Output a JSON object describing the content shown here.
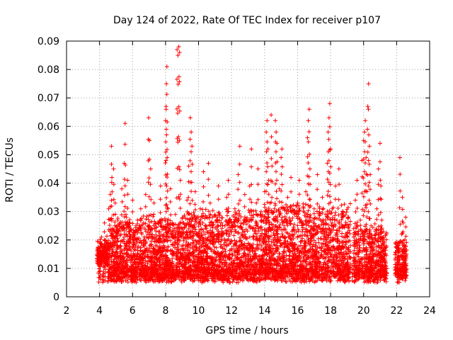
{
  "chart_data": {
    "type": "scatter",
    "title": "Day 124 of 2022, Rate Of TEC Index for receiver p107",
    "xlabel": "GPS time / hours",
    "ylabel": "ROTI / TECUs",
    "xlim": [
      2,
      24
    ],
    "ylim": [
      0,
      0.09
    ],
    "x_ticks": [
      2,
      4,
      6,
      8,
      10,
      12,
      14,
      16,
      18,
      20,
      22,
      24
    ],
    "y_ticks": [
      0,
      0.01,
      0.02,
      0.03,
      0.04,
      0.05,
      0.06,
      0.07,
      0.08,
      0.09
    ],
    "x_tick_labels": [
      "2",
      "4",
      "6",
      "8",
      "10",
      "12",
      "14",
      "16",
      "18",
      "20",
      "22",
      "24"
    ],
    "y_tick_labels": [
      "0",
      "0.01",
      "0.02",
      "0.03",
      "0.04",
      "0.05",
      "0.06",
      "0.07",
      "0.08",
      "0.09"
    ],
    "grid": true,
    "marker": "+",
    "color": "#ff0000",
    "series": [
      {
        "name": "ROTI",
        "points": [
          [
            3.95,
            0.013
          ],
          [
            3.98,
            0.017
          ],
          [
            4.05,
            0.012
          ],
          [
            4.12,
            0.021
          ],
          [
            4.2,
            0.008
          ],
          [
            4.25,
            0.014
          ],
          [
            4.3,
            0.026
          ],
          [
            4.35,
            0.011
          ],
          [
            4.45,
            0.019
          ],
          [
            4.55,
            0.031
          ],
          [
            4.6,
            0.015
          ],
          [
            4.65,
            0.036
          ],
          [
            4.72,
            0.053
          ],
          [
            4.75,
            0.042
          ],
          [
            4.8,
            0.024
          ],
          [
            4.85,
            0.045
          ],
          [
            4.9,
            0.012
          ],
          [
            4.95,
            0.033
          ],
          [
            5.05,
            0.018
          ],
          [
            5.1,
            0.027
          ],
          [
            5.2,
            0.009
          ],
          [
            5.3,
            0.022
          ],
          [
            5.35,
            0.038
          ],
          [
            5.45,
            0.014
          ],
          [
            5.5,
            0.047
          ],
          [
            5.55,
            0.061
          ],
          [
            5.6,
            0.029
          ],
          [
            5.65,
            0.017
          ],
          [
            5.7,
            0.041
          ],
          [
            5.8,
            0.023
          ],
          [
            5.9,
            0.012
          ],
          [
            6.0,
            0.034
          ],
          [
            6.1,
            0.019
          ],
          [
            6.2,
            0.008
          ],
          [
            6.3,
            0.027
          ],
          [
            6.4,
            0.015
          ],
          [
            6.5,
            0.031
          ],
          [
            6.6,
            0.011
          ],
          [
            6.7,
            0.021
          ],
          [
            6.8,
            0.036
          ],
          [
            6.9,
            0.014
          ],
          [
            6.97,
            0.063
          ],
          [
            7.02,
            0.055
          ],
          [
            7.1,
            0.045
          ],
          [
            7.15,
            0.024
          ],
          [
            7.2,
            0.012
          ],
          [
            7.3,
            0.033
          ],
          [
            7.4,
            0.018
          ],
          [
            7.5,
            0.009
          ],
          [
            7.6,
            0.026
          ],
          [
            7.7,
            0.039
          ],
          [
            7.8,
            0.015
          ],
          [
            7.9,
            0.022
          ],
          [
            8.0,
            0.062
          ],
          [
            8.03,
            0.067
          ],
          [
            8.05,
            0.075
          ],
          [
            8.08,
            0.081
          ],
          [
            8.1,
            0.049
          ],
          [
            8.15,
            0.031
          ],
          [
            8.2,
            0.013
          ],
          [
            8.3,
            0.038
          ],
          [
            8.4,
            0.021
          ],
          [
            8.5,
            0.011
          ],
          [
            8.6,
            0.029
          ],
          [
            8.7,
            0.087
          ],
          [
            8.75,
            0.085
          ],
          [
            8.8,
            0.088
          ],
          [
            8.85,
            0.086
          ],
          [
            8.9,
            0.041
          ],
          [
            9.0,
            0.017
          ],
          [
            9.1,
            0.026
          ],
          [
            9.2,
            0.012
          ],
          [
            9.3,
            0.034
          ],
          [
            9.4,
            0.046
          ],
          [
            9.5,
            0.063
          ],
          [
            9.55,
            0.058
          ],
          [
            9.6,
            0.053
          ],
          [
            9.65,
            0.028
          ],
          [
            9.7,
            0.014
          ],
          [
            9.8,
            0.037
          ],
          [
            9.9,
            0.022
          ],
          [
            10.0,
            0.009
          ],
          [
            10.1,
            0.031
          ],
          [
            10.2,
            0.018
          ],
          [
            10.3,
            0.044
          ],
          [
            10.4,
            0.025
          ],
          [
            10.5,
            0.012
          ],
          [
            10.6,
            0.047
          ],
          [
            10.7,
            0.033
          ],
          [
            10.8,
            0.016
          ],
          [
            10.9,
            0.021
          ],
          [
            11.0,
            0.011
          ],
          [
            11.1,
            0.027
          ],
          [
            11.2,
            0.039
          ],
          [
            11.3,
            0.014
          ],
          [
            11.4,
            0.023
          ],
          [
            11.5,
            0.008
          ],
          [
            11.6,
            0.019
          ],
          [
            11.7,
            0.035
          ],
          [
            11.8,
            0.041
          ],
          [
            11.9,
            0.015
          ],
          [
            12.0,
            0.026
          ],
          [
            12.1,
            0.012
          ],
          [
            12.2,
            0.031
          ],
          [
            12.3,
            0.018
          ],
          [
            12.4,
            0.043
          ],
          [
            12.5,
            0.053
          ],
          [
            12.6,
            0.022
          ],
          [
            12.7,
            0.014
          ],
          [
            12.8,
            0.036
          ],
          [
            12.9,
            0.027
          ],
          [
            13.0,
            0.011
          ],
          [
            13.1,
            0.039
          ],
          [
            13.2,
            0.052
          ],
          [
            13.3,
            0.021
          ],
          [
            13.4,
            0.016
          ],
          [
            13.5,
            0.033
          ],
          [
            13.6,
            0.045
          ],
          [
            13.7,
            0.013
          ],
          [
            13.8,
            0.028
          ],
          [
            13.9,
            0.019
          ],
          [
            14.0,
            0.037
          ],
          [
            14.1,
            0.058
          ],
          [
            14.15,
            0.062
          ],
          [
            14.2,
            0.052
          ],
          [
            14.25,
            0.041
          ],
          [
            14.3,
            0.024
          ],
          [
            14.4,
            0.064
          ],
          [
            14.45,
            0.046
          ],
          [
            14.5,
            0.017
          ],
          [
            14.6,
            0.031
          ],
          [
            14.65,
            0.062
          ],
          [
            14.7,
            0.058
          ],
          [
            14.75,
            0.054
          ],
          [
            14.8,
            0.022
          ],
          [
            14.9,
            0.038
          ],
          [
            15.0,
            0.049
          ],
          [
            15.05,
            0.052
          ],
          [
            15.1,
            0.014
          ],
          [
            15.2,
            0.027
          ],
          [
            15.3,
            0.011
          ],
          [
            15.4,
            0.035
          ],
          [
            15.5,
            0.021
          ],
          [
            15.6,
            0.042
          ],
          [
            15.7,
            0.016
          ],
          [
            15.8,
            0.029
          ],
          [
            15.9,
            0.012
          ],
          [
            16.0,
            0.033
          ],
          [
            16.1,
            0.041
          ],
          [
            16.2,
            0.018
          ],
          [
            16.3,
            0.026
          ],
          [
            16.4,
            0.008
          ],
          [
            16.5,
            0.037
          ],
          [
            16.6,
            0.056
          ],
          [
            16.65,
            0.062
          ],
          [
            16.7,
            0.066
          ],
          [
            16.75,
            0.045
          ],
          [
            16.8,
            0.022
          ],
          [
            16.9,
            0.014
          ],
          [
            17.0,
            0.031
          ],
          [
            17.1,
            0.019
          ],
          [
            17.2,
            0.043
          ],
          [
            17.3,
            0.012
          ],
          [
            17.4,
            0.027
          ],
          [
            17.5,
            0.035
          ],
          [
            17.6,
            0.016
          ],
          [
            17.7,
            0.024
          ],
          [
            17.8,
            0.047
          ],
          [
            17.85,
            0.058
          ],
          [
            17.9,
            0.063
          ],
          [
            17.95,
            0.068
          ],
          [
            18.0,
            0.052
          ],
          [
            18.1,
            0.031
          ],
          [
            18.2,
            0.014
          ],
          [
            18.3,
            0.039
          ],
          [
            18.4,
            0.022
          ],
          [
            18.5,
            0.045
          ],
          [
            18.6,
            0.017
          ],
          [
            18.7,
            0.028
          ],
          [
            18.8,
            0.012
          ],
          [
            18.9,
            0.021
          ],
          [
            19.0,
            0.015
          ],
          [
            19.1,
            0.009
          ],
          [
            19.2,
            0.018
          ],
          [
            19.3,
            0.011
          ],
          [
            19.4,
            0.024
          ],
          [
            19.5,
            0.034
          ],
          [
            19.6,
            0.041
          ],
          [
            19.7,
            0.016
          ],
          [
            19.8,
            0.027
          ],
          [
            19.9,
            0.048
          ],
          [
            20.0,
            0.055
          ],
          [
            20.05,
            0.058
          ],
          [
            20.1,
            0.062
          ],
          [
            20.15,
            0.049
          ],
          [
            20.2,
            0.037
          ],
          [
            20.25,
            0.067
          ],
          [
            20.3,
            0.075
          ],
          [
            20.35,
            0.053
          ],
          [
            20.4,
            0.043
          ],
          [
            20.45,
            0.025
          ],
          [
            20.5,
            0.011
          ],
          [
            20.6,
            0.019
          ],
          [
            20.7,
            0.008
          ],
          [
            20.8,
            0.031
          ],
          [
            20.9,
            0.045
          ],
          [
            21.0,
            0.054
          ],
          [
            21.05,
            0.039
          ],
          [
            21.1,
            0.027
          ],
          [
            21.15,
            0.014
          ],
          [
            21.2,
            0.021
          ],
          [
            21.25,
            0.009
          ],
          [
            21.3,
            0.017
          ],
          [
            22.05,
            0.013
          ],
          [
            22.1,
            0.018
          ],
          [
            22.15,
            0.008
          ],
          [
            22.2,
            0.049
          ],
          [
            22.3,
            0.022
          ],
          [
            22.35,
            0.035
          ],
          [
            22.4,
            0.026
          ],
          [
            22.45,
            0.016
          ],
          [
            22.5,
            0.011
          ],
          [
            22.55,
            0.028
          ]
        ]
      }
    ],
    "dense_bands": [
      {
        "x": [
          3.85,
          4.5
        ],
        "y": [
          0.011,
          0.018
        ]
      },
      {
        "x": [
          4.5,
          9.0
        ],
        "y": [
          0.005,
          0.025
        ]
      },
      {
        "x": [
          9.0,
          14.0
        ],
        "y": [
          0.005,
          0.028
        ]
      },
      {
        "x": [
          14.0,
          19.2
        ],
        "y": [
          0.005,
          0.03
        ]
      },
      {
        "x": [
          19.4,
          21.4
        ],
        "y": [
          0.005,
          0.022
        ]
      },
      {
        "x": [
          21.9,
          22.6
        ],
        "y": [
          0.006,
          0.017
        ]
      }
    ]
  }
}
